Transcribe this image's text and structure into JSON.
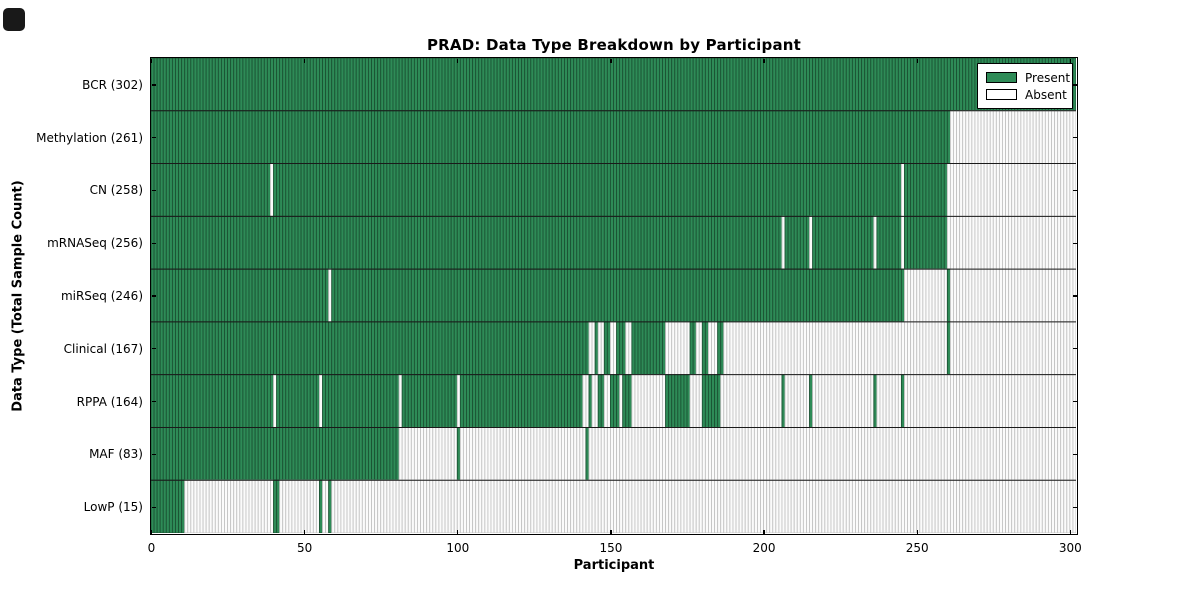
{
  "title": "PRAD: Data Type Breakdown by Participant",
  "axes": {
    "x_label": "Participant",
    "y_label": "Data Type (Total Sample Count)",
    "x_ticks": [
      0,
      50,
      100,
      150,
      200,
      250,
      300
    ]
  },
  "legend": {
    "present_label": "Present",
    "absent_label": "Absent"
  },
  "colors": {
    "present_fill": "#2e8b57",
    "present_edge": "#1b5434",
    "absent_fill": "#fbfbfb",
    "absent_edge": "#c4c4c4",
    "row_divider": "#1a1a1a",
    "spine": "#000000"
  },
  "chart_data": {
    "type": "heatmap",
    "title": "PRAD: Data Type Breakdown by Participant",
    "xlabel": "Participant",
    "ylabel": "Data Type (Total Sample Count)",
    "x_range": [
      0,
      302
    ],
    "x_ticks": [
      0,
      50,
      100,
      150,
      200,
      250,
      300
    ],
    "legend_entries": [
      "Present",
      "Absent"
    ],
    "legend_position": "upper right",
    "grid": false,
    "rows": [
      {
        "label": "BCR (302)",
        "data_type": "BCR",
        "total_samples": 302,
        "present_ranges": [
          [
            0,
            302
          ]
        ]
      },
      {
        "label": "Methylation (261)",
        "data_type": "Methylation",
        "total_samples": 261,
        "present_ranges": [
          [
            0,
            261
          ]
        ]
      },
      {
        "label": "CN (258)",
        "data_type": "CN",
        "total_samples": 258,
        "present_ranges": [
          [
            0,
            39
          ],
          [
            40,
            245
          ],
          [
            246,
            260
          ]
        ]
      },
      {
        "label": "mRNASeq (256)",
        "data_type": "mRNASeq",
        "total_samples": 256,
        "present_ranges": [
          [
            0,
            206
          ],
          [
            207,
            215
          ],
          [
            216,
            236
          ],
          [
            237,
            245
          ],
          [
            246,
            260
          ]
        ]
      },
      {
        "label": "miRSeq (246)",
        "data_type": "miRSeq",
        "total_samples": 246,
        "present_ranges": [
          [
            0,
            58
          ],
          [
            59,
            246
          ],
          [
            260,
            261
          ]
        ]
      },
      {
        "label": "Clinical (167)",
        "data_type": "Clinical",
        "total_samples": 167,
        "present_ranges": [
          [
            0,
            143
          ],
          [
            145,
            146
          ],
          [
            148,
            150
          ],
          [
            152,
            155
          ],
          [
            157,
            168
          ],
          [
            176,
            178
          ],
          [
            180,
            182
          ],
          [
            185,
            187
          ],
          [
            260,
            261
          ]
        ]
      },
      {
        "label": "RPPA (164)",
        "data_type": "RPPA",
        "total_samples": 164,
        "present_ranges": [
          [
            0,
            40
          ],
          [
            41,
            55
          ],
          [
            56,
            81
          ],
          [
            82,
            100
          ],
          [
            101,
            141
          ],
          [
            143,
            144
          ],
          [
            146,
            148
          ],
          [
            150,
            153
          ],
          [
            154,
            157
          ],
          [
            168,
            176
          ],
          [
            180,
            186
          ],
          [
            206,
            207
          ],
          [
            215,
            216
          ],
          [
            236,
            237
          ],
          [
            245,
            246
          ]
        ]
      },
      {
        "label": "MAF (83)",
        "data_type": "MAF",
        "total_samples": 83,
        "present_ranges": [
          [
            0,
            81
          ],
          [
            100,
            101
          ],
          [
            142,
            143
          ]
        ]
      },
      {
        "label": "LowP (15)",
        "data_type": "LowP",
        "total_samples": 15,
        "present_ranges": [
          [
            0,
            11
          ],
          [
            40,
            42
          ],
          [
            55,
            56
          ],
          [
            58,
            59
          ]
        ]
      }
    ]
  }
}
